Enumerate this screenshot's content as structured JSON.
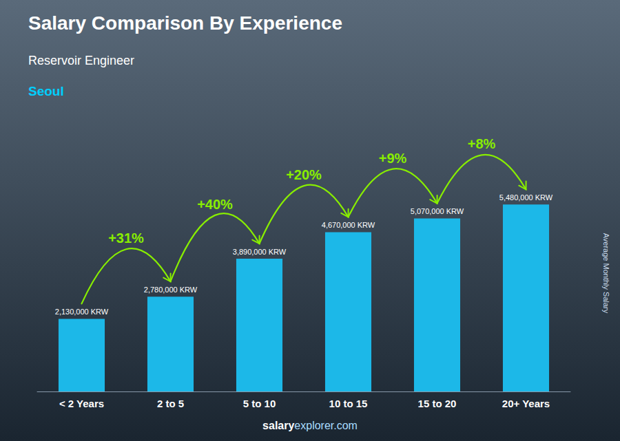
{
  "chart_data": {
    "type": "bar",
    "title": "Salary Comparison By Experience",
    "subtitle": "Reservoir Engineer",
    "city": "Seoul",
    "ylabel": "Average Monthly Salary",
    "footer": [
      "salary",
      "explorer.com"
    ],
    "categories": [
      "< 2 Years",
      "2 to 5",
      "5 to 10",
      "10 to 15",
      "15 to 20",
      "20+ Years"
    ],
    "values": [
      2130000,
      2780000,
      3890000,
      4670000,
      5070000,
      5480000
    ],
    "value_labels": [
      "2,130,000 KRW",
      "2,780,000 KRW",
      "3,890,000 KRW",
      "4,670,000 KRW",
      "5,070,000 KRW",
      "5,480,000 KRW"
    ],
    "data_labels": true,
    "annotations": [
      "+31%",
      "+40%",
      "+20%",
      "+9%",
      "+8%"
    ],
    "color": "#1CB8E8",
    "ylim": [
      0,
      7200000
    ],
    "tick_labels": "x",
    "grid": false
  }
}
